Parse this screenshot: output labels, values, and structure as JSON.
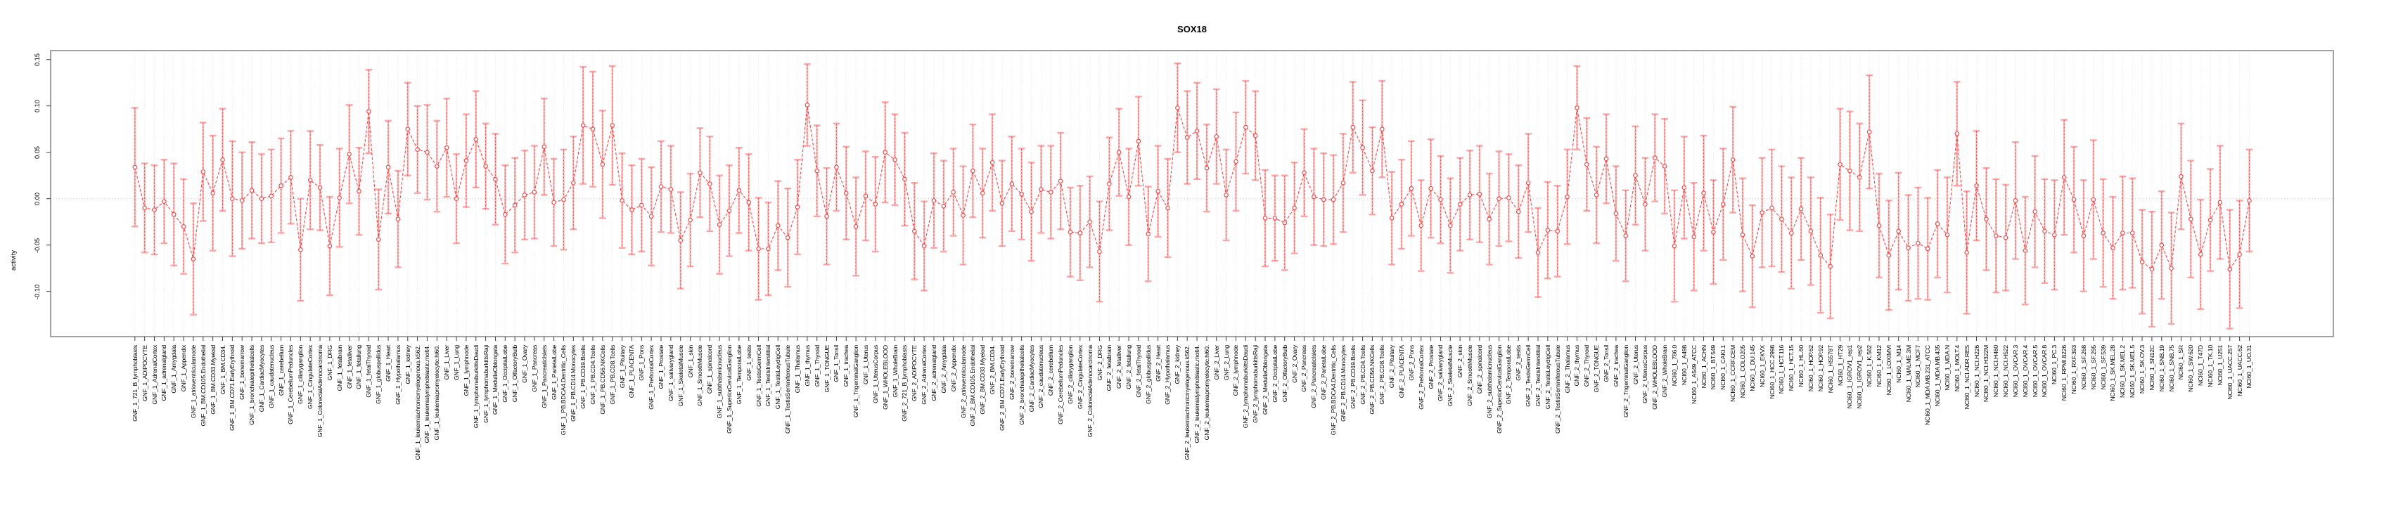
{
  "chart_data": {
    "type": "line",
    "title": "SOX18",
    "ylabel": "activity",
    "xlabel": "",
    "ylim": [
      -0.149,
      0.16
    ],
    "yticks": [
      0.15,
      0.1,
      0.05,
      0.0,
      -0.05,
      -0.1
    ],
    "ytick_labels": [
      "0.15",
      "0.10",
      "0.05",
      "0.00",
      "-0.05",
      "-0.10"
    ],
    "grid": {
      "vertical_per_category": true,
      "zero_line_dotted": true
    },
    "legend_position": "none",
    "point_style": "open-circle",
    "point_color": "#ff4343",
    "line_color": "#ff4040",
    "errorbar_color": "#ffa0a0",
    "errorbar_dash_color": "#ff3333",
    "box_color": "#8a8a8a",
    "grid_color": "#dcdcdc",
    "background": "#ffffff",
    "categories": [
      "GNF_1_721_B_lymphoblasts",
      "GNF_1_ADIPOCYTE",
      "GNF_1_AdrenalCortex",
      "GNF_1_adrenalgland",
      "GNF_1_Amygdala",
      "GNF_1_Appendix",
      "GNF_1_atrioventricularnode",
      "GNF_1_BM.CD105.Endothelial",
      "GNF_1_BM.CD33.Myeloid",
      "GNF_1_BM.CD34.",
      "GNF_1_BM.CD71.EarlyErythroid",
      "GNF_1_bonemarrow",
      "GNF_1_bronchialepithelialcells",
      "GNF_1_CardiacMyocytes",
      "GNF_1_caudatenucleus",
      "GNF_1_cerebellum",
      "GNF_1_CerebellumPeduncles",
      "GNF_1_ciliaryganglion",
      "GNF_1_CingulateCortex",
      "GNF_1_ColorectalAdenocarcinoma",
      "GNF_1_DRG",
      "GNF_1_fetalbrain",
      "GNF_1_fetalliver",
      "GNF_1_fetallung",
      "GNF_1_fetalThyroid",
      "GNF_1_globuspallidus",
      "GNF_1_Heart",
      "GNF_1_Hypothalamus",
      "GNF_1_kidney",
      "GNF_1_leukemiachronicmyelogenous.k562.",
      "GNF_1_leukemialymphoblastic.molt4.",
      "GNF_1_leukemiapromyelocytic.hl60.",
      "GNF_1_Liver",
      "GNF_1_Lung",
      "GNF_1_lymphnode",
      "GNF_1_lymphomaburkittsDaudi",
      "GNF_1_lymphomaburkittsRaji",
      "GNF_1_MedullaOblongata",
      "GNF_1_OccipitalLobe",
      "GNF_1_OlfactoryBulb",
      "GNF_1_Ovary",
      "GNF_1_Pancreas",
      "GNF_1_PancreaticIslets",
      "GNF_1_ParietalLobe",
      "GNF_1_PB.BDCA4.Dentritic_Cells",
      "GNF_1_PB.CD14.Monocytes",
      "GNF_1_PB.CD19.Bcells",
      "GNF_1_PB.CD4.Tcells",
      "GNF_1_PB.CD56.NKCells",
      "GNF_1_PB.CD8.Tcells",
      "GNF_1_Pituitary",
      "GNF_1_PLACENTA",
      "GNF_1_Pons",
      "GNF_1_PrefrontalCortex",
      "GNF_1_Prostate",
      "GNF_1_salivarygland",
      "GNF_1_SkeletalMuscle",
      "GNF_1_skin",
      "GNF_1_SmoothMuscle",
      "GNF_1_spinalcord",
      "GNF_1_subthalamicnucleus",
      "GNF_1_SuperiorCervicalGanglion",
      "GNF_1_TemporalLobe",
      "GNF_1_testis",
      "GNF_1_TestisGermCell",
      "GNF_1_TestisInterstitial",
      "GNF_1_TestisLeydigCell",
      "GNF_1_TestisSeminiferousTubule",
      "GNF_1_Thalamus",
      "GNF_1_thymus",
      "GNF_1_Thyroid",
      "GNF_1_TONGUE",
      "GNF_1_Tonsil",
      "GNF_1_trachea",
      "GNF_1_TrigeminalGanglion",
      "GNF_1_Uterus",
      "GNF_1_UterusCorpus",
      "GNF_1_WHOLEBLOOD",
      "GNF_1_WholeBrain",
      "GNF_2_721_B_lymphoblasts",
      "GNF_2_ADIPOCYTE",
      "GNF_2_AdrenalCortex",
      "GNF_2_adrenalgland",
      "GNF_2_Amygdala",
      "GNF_2_Appendix",
      "GNF_2_atrioventricularnode",
      "GNF_2_BM.CD105.Endothelial",
      "GNF_2_BM.CD33.Myeloid",
      "GNF_2_BM.CD34.",
      "GNF_2_BM.CD71.EarlyErythroid",
      "GNF_2_bonemarrow",
      "GNF_2_bronchialepithelialcells",
      "GNF_2_CardiacMyocytes",
      "GNF_2_caudatenucleus",
      "GNF_2_cerebellum",
      "GNF_2_CerebellumPeduncles",
      "GNF_2_ciliaryganglion",
      "GNF_2_CingulateCortex",
      "GNF_2_ColorectalAdenocarcinoma",
      "GNF_2_DRG",
      "GNF_2_fetalbrain",
      "GNF_2_fetalliver",
      "GNF_2_fetallung",
      "GNF_2_fetalThyroid",
      "GNF_2_globuspallidus",
      "GNF_2_Heart",
      "GNF_2_Hypothalamus",
      "GNF_2_kidney",
      "GNF_2_leukemiachronicmyelogenous.k562.",
      "GNF_2_leukemialymphoblastic.molt4.",
      "GNF_2_leukemiapromyelocytic.hl60.",
      "GNF_2_Liver",
      "GNF_2_Lung",
      "GNF_2_lymphnode",
      "GNF_2_lymphomaburkittsDaudi",
      "GNF_2_lymphomaburkittsRaji",
      "GNF_2_MedullaOblongata",
      "GNF_2_OccipitalLobe",
      "GNF_2_OlfactoryBulb",
      "GNF_2_Ovary",
      "GNF_2_Pancreas",
      "GNF_2_PancreaticIslets",
      "GNF_2_ParietalLobe",
      "GNF_2_PB.BDCA4.Dentritic_Cells",
      "GNF_2_PB.CD14.Monocytes",
      "GNF_2_PB.CD19.Bcells",
      "GNF_2_PB.CD4.Tcells",
      "GNF_2_PB.CD56.NKCells",
      "GNF_2_PB.CD8.Tcells",
      "GNF_2_Pituitary",
      "GNF_2_PLACENTA",
      "GNF_2_Pons",
      "GNF_2_PrefrontalCortex",
      "GNF_2_Prostate",
      "GNF_2_salivarygland",
      "GNF_2_SkeletalMuscle",
      "GNF_2_skin",
      "GNF_2_SmoothMuscle",
      "GNF_2_spinalcord",
      "GNF_2_subthalamicnucleus",
      "GNF_2_SuperiorCervicalGanglion",
      "GNF_2_TemporalLobe",
      "GNF_2_testis",
      "GNF_2_TestisGermCell",
      "GNF_2_TestisInterstitial",
      "GNF_2_TestisLeydigCell",
      "GNF_2_TestisSeminiferousTubule",
      "GNF_2_Thalamus",
      "GNF_2_thymus",
      "GNF_2_Thyroid",
      "GNF_2_TONGUE",
      "GNF_2_Tonsil",
      "GNF_2_trachea",
      "GNF_2_TrigeminalGanglion",
      "GNF_2_Uterus",
      "GNF_2_UterusCorpus",
      "GNF_2_WHOLEBLOOD",
      "GNF_2_WholeBrain",
      "NCI60_1_786.0",
      "NCI60_1_A498",
      "NCI60_1_A549_ATCC",
      "NCI60_1_ACHN",
      "NCI60_1_BT.549",
      "NCI60_1_CAKI.1",
      "NCI60_1_CCRF.CEM",
      "NCI60_1_COLO205",
      "NCI60_1_DU.145",
      "NCI60_1_EKVX",
      "NCI60_1_HCC.2998",
      "NCI60_1_HCT.116",
      "NCI60_1_HCT.15",
      "NCI60_1_HL.60",
      "NCI60_1_HOP.62",
      "NCI60_1_HOP.92",
      "NCI60_1_HS578T",
      "NCI60_1_HT29",
      "NCI60_1_IGROV1_rep1",
      "NCI60_1_IGROV1_rep2",
      "NCI60_1_K.562",
      "NCI60_1_KM12",
      "NCI60_1_LOXIMVI",
      "NCI60_1_M14",
      "NCI60_1_MALME.3M",
      "NCI60_1_MCF7",
      "NCI60_1_MDA.MB.231_ATCC",
      "NCI60_1_MDA.MB.435",
      "NCI60_1_MDA.N",
      "NCI60_1_MOLT.4",
      "NCI60_1_NCI.ADR.RES",
      "NCI60_1_NCI.H226",
      "NCI60_1_NCI.H322M",
      "NCI60_1_NCI.H460",
      "NCI60_1_NCI.H522",
      "NCI60_1_OVCAR.3",
      "NCI60_1_OVCAR.4",
      "NCI60_1_OVCAR.5",
      "NCI60_1_OVCAR.8",
      "NCI60_1_PC.3",
      "NCI60_1_RPMI.8226",
      "NCI60_1_RXF.393",
      "NCI60_1_SF.268",
      "NCI60_1_SF.295",
      "NCI60_1_SF.539",
      "NCI60_1_SK.MEL.28",
      "NCI60_1_SK.MEL.2",
      "NCI60_1_SK.MEL.5",
      "NCI60_1_SK.OV.3",
      "NCI60_1_SN12C",
      "NCI60_1_SNB.19",
      "NCI60_1_SNB.75",
      "NCI60_1_SR",
      "NCI60_1_SW.620",
      "NCI60_1_T47D",
      "NCI60_1_TK.10",
      "NCI60_1_U251",
      "NCI60_1_UACC.257",
      "NCI60_1_UACC.62",
      "NCI60_1_UO.31"
    ],
    "series": [
      {
        "name": "activity",
        "values": [
          0.034,
          -0.01,
          -0.012,
          -0.003,
          -0.017,
          -0.03,
          -0.065,
          0.029,
          0.006,
          0.042,
          0.0,
          -0.002,
          0.009,
          0.0,
          0.003,
          0.014,
          0.023,
          -0.055,
          0.02,
          0.012,
          -0.051,
          0.001,
          0.048,
          0.008,
          0.094,
          -0.044,
          0.034,
          -0.022,
          0.075,
          0.053,
          0.05,
          0.035,
          0.055,
          0.0,
          0.041,
          0.064,
          0.035,
          0.021,
          -0.017,
          -0.007,
          0.004,
          0.007,
          0.056,
          -0.004,
          -0.001,
          0.017,
          0.079,
          0.075,
          0.037,
          0.079,
          -0.002,
          -0.012,
          -0.007,
          -0.019,
          0.013,
          0.01,
          -0.045,
          -0.023,
          0.028,
          0.016,
          -0.028,
          -0.013,
          0.009,
          -0.004,
          -0.054,
          -0.054,
          -0.029,
          -0.042,
          -0.009,
          0.101,
          0.03,
          -0.019,
          0.034,
          0.006,
          -0.03,
          0.003,
          -0.006,
          0.05,
          0.042,
          0.021,
          -0.035,
          -0.051,
          -0.002,
          -0.008,
          0.007,
          -0.018,
          0.03,
          0.006,
          0.039,
          -0.005,
          0.016,
          0.005,
          -0.014,
          0.01,
          0.007,
          0.019,
          -0.036,
          -0.037,
          -0.025,
          -0.057,
          0.016,
          0.05,
          0.002,
          0.062,
          -0.038,
          0.008,
          -0.01,
          0.098,
          0.066,
          0.073,
          0.033,
          0.067,
          0.004,
          0.04,
          0.077,
          0.068,
          -0.021,
          -0.021,
          -0.026,
          -0.01,
          0.028,
          0.002,
          -0.001,
          -0.001,
          0.017,
          0.077,
          0.055,
          0.03,
          0.075,
          -0.021,
          -0.006,
          0.011,
          -0.029,
          0.011,
          -0.001,
          -0.029,
          -0.006,
          0.004,
          0.005,
          -0.022,
          0.0,
          0.001,
          -0.014,
          0.017,
          -0.058,
          -0.034,
          -0.035,
          0.002,
          0.098,
          0.037,
          0.004,
          0.043,
          -0.016,
          -0.04,
          0.025,
          -0.006,
          0.044,
          0.035,
          -0.051,
          0.012,
          -0.041,
          0.006,
          -0.036,
          -0.006,
          0.042,
          -0.039,
          -0.062,
          -0.015,
          -0.01,
          -0.022,
          -0.037,
          -0.011,
          -0.035,
          -0.061,
          -0.073,
          0.037,
          0.03,
          0.023,
          0.072,
          -0.029,
          -0.061,
          -0.035,
          -0.053,
          -0.048,
          -0.054,
          -0.027,
          -0.039,
          0.07,
          -0.058,
          0.014,
          -0.022,
          -0.04,
          -0.042,
          -0.002,
          -0.056,
          -0.014,
          -0.035,
          -0.039,
          0.023,
          -0.001,
          -0.04,
          -0.001,
          -0.037,
          -0.053,
          -0.037,
          -0.037,
          -0.068,
          -0.076,
          -0.05,
          -0.075,
          0.024,
          -0.022,
          -0.06,
          -0.023,
          -0.004,
          -0.076,
          -0.06,
          -0.002
        ],
        "errors": [
          0.064,
          0.048,
          0.048,
          0.045,
          0.055,
          0.051,
          0.06,
          0.053,
          0.062,
          0.055,
          0.062,
          0.052,
          0.052,
          0.048,
          0.05,
          0.051,
          0.05,
          0.055,
          0.053,
          0.046,
          0.053,
          0.053,
          0.053,
          0.047,
          0.045,
          0.054,
          0.05,
          0.052,
          0.05,
          0.047,
          0.051,
          0.049,
          0.053,
          0.048,
          0.05,
          0.052,
          0.046,
          0.049,
          0.053,
          0.051,
          0.048,
          0.05,
          0.052,
          0.047,
          0.054,
          0.05,
          0.063,
          0.062,
          0.058,
          0.064,
          0.051,
          0.048,
          0.05,
          0.053,
          0.049,
          0.047,
          0.052,
          0.05,
          0.048,
          0.051,
          0.053,
          0.049,
          0.046,
          0.052,
          0.055,
          0.05,
          0.048,
          0.053,
          0.051,
          0.044,
          0.049,
          0.052,
          0.047,
          0.05,
          0.053,
          0.048,
          0.051,
          0.054,
          0.049,
          0.05,
          0.052,
          0.048,
          0.051,
          0.049,
          0.047,
          0.053,
          0.05,
          0.048,
          0.052,
          0.046,
          0.051,
          0.049,
          0.053,
          0.047,
          0.05,
          0.052,
          0.048,
          0.051,
          0.049,
          0.054,
          0.05,
          0.047,
          0.052,
          0.048,
          0.051,
          0.049,
          0.053,
          0.048,
          0.05,
          0.052,
          0.047,
          0.051,
          0.049,
          0.053,
          0.05,
          0.048,
          0.052,
          0.046,
          0.051,
          0.049,
          0.047,
          0.052,
          0.05,
          0.048,
          0.053,
          0.049,
          0.051,
          0.047,
          0.052,
          0.05,
          0.048,
          0.051,
          0.049,
          0.053,
          0.047,
          0.051,
          0.05,
          0.048,
          0.052,
          0.049,
          0.051,
          0.047,
          0.05,
          0.053,
          0.048,
          0.052,
          0.049,
          0.051,
          0.045,
          0.05,
          0.052,
          0.048,
          0.051,
          0.049,
          0.053,
          0.05,
          0.047,
          0.051,
          0.06,
          0.055,
          0.058,
          0.062,
          0.056,
          0.06,
          0.057,
          0.061,
          0.055,
          0.059,
          0.063,
          0.057,
          0.06,
          0.055,
          0.058,
          0.062,
          0.056,
          0.06,
          0.064,
          0.058,
          0.061,
          0.056,
          0.059,
          0.063,
          0.057,
          0.06,
          0.055,
          0.058,
          0.062,
          0.056,
          0.066,
          0.059,
          0.055,
          0.061,
          0.057,
          0.063,
          0.058,
          0.06,
          0.056,
          0.059,
          0.062,
          0.057,
          0.06,
          0.064,
          0.058,
          0.055,
          0.061,
          0.059,
          0.056,
          0.062,
          0.058,
          0.06,
          0.057,
          0.063,
          0.059,
          0.055,
          0.061,
          0.064,
          0.058,
          0.055
        ]
      }
    ]
  }
}
